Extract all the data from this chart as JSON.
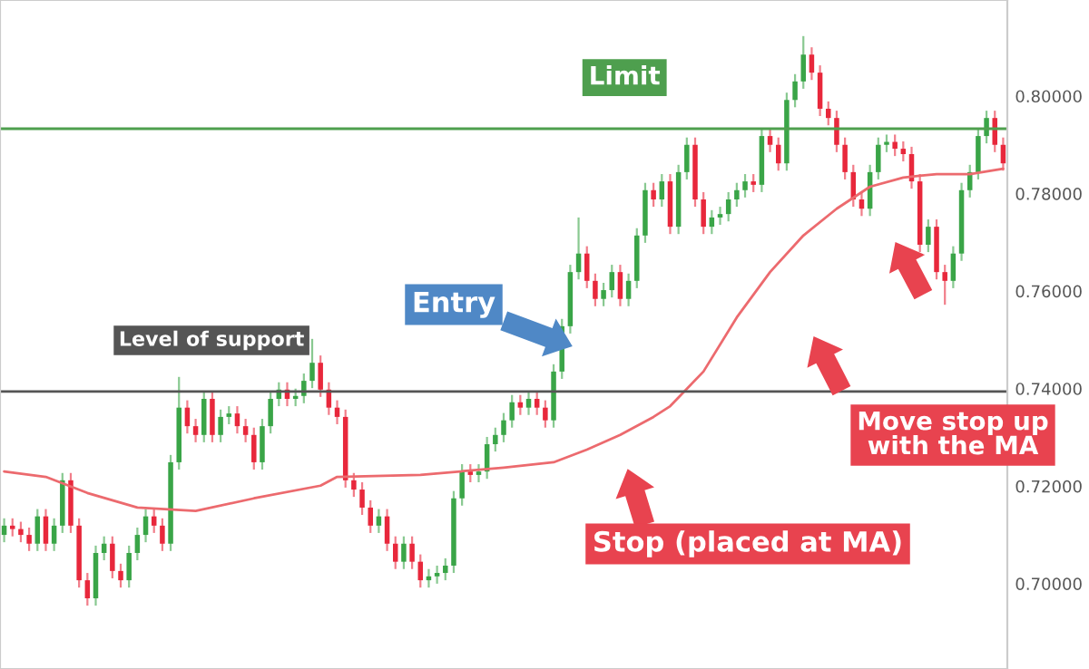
{
  "chart_data": {
    "type": "candlestick",
    "categories": [
      null,
      null,
      null,
      null,
      null,
      null,
      null,
      null,
      null,
      null,
      null,
      null,
      null,
      null,
      null,
      null,
      null,
      null,
      null,
      null,
      null,
      null,
      null,
      null,
      null,
      null,
      null,
      null,
      null,
      null,
      null,
      null,
      null,
      null,
      null,
      null,
      null,
      null,
      null,
      null,
      null,
      null,
      null,
      null,
      null,
      null,
      null,
      null,
      null,
      null,
      null,
      null,
      null,
      null,
      null,
      null,
      null,
      null,
      null,
      null,
      null,
      null,
      null,
      null,
      null,
      null,
      null,
      null,
      null,
      null,
      null,
      null,
      null,
      null,
      null,
      null,
      null,
      null,
      null,
      null,
      null,
      null,
      null,
      null,
      null,
      null,
      null,
      null,
      null,
      null,
      null,
      null,
      null,
      null,
      null,
      null,
      null,
      null,
      null,
      null,
      null,
      null,
      null,
      null,
      null,
      null,
      null,
      null,
      null,
      null,
      null,
      null,
      null,
      null,
      null,
      null,
      null,
      null,
      null,
      null,
      null
    ],
    "ohlc": [
      [
        0.71,
        0.7134,
        0.7085,
        0.7119
      ],
      [
        0.7119,
        0.7134,
        0.7097,
        0.7112
      ],
      [
        0.7112,
        0.7127,
        0.7085,
        0.71
      ],
      [
        0.71,
        0.7115,
        0.7067,
        0.7082
      ],
      [
        0.7082,
        0.7153,
        0.7067,
        0.7138
      ],
      [
        0.7138,
        0.7153,
        0.7067,
        0.7082
      ],
      [
        0.7082,
        0.7134,
        0.7067,
        0.7119
      ],
      [
        0.7119,
        0.7227,
        0.7104,
        0.7212
      ],
      [
        0.7212,
        0.7227,
        0.7104,
        0.7119
      ],
      [
        0.7119,
        0.7134,
        0.6992,
        0.7007
      ],
      [
        0.7007,
        0.7022,
        0.6955,
        0.697
      ],
      [
        0.697,
        0.7078,
        0.6955,
        0.7063
      ],
      [
        0.7063,
        0.7097,
        0.7048,
        0.7082
      ],
      [
        0.7082,
        0.7097,
        0.7011,
        0.7026
      ],
      [
        0.7026,
        0.7041,
        0.6992,
        0.7007
      ],
      [
        0.7007,
        0.7078,
        0.6992,
        0.7063
      ],
      [
        0.7063,
        0.7115,
        0.7048,
        0.71
      ],
      [
        0.71,
        0.7153,
        0.7085,
        0.7138
      ],
      [
        0.7138,
        0.7153,
        0.7104,
        0.7119
      ],
      [
        0.7119,
        0.7134,
        0.7067,
        0.7082
      ],
      [
        0.7082,
        0.7264,
        0.7067,
        0.7249
      ],
      [
        0.7249,
        0.7424,
        0.7234,
        0.7361
      ],
      [
        0.7361,
        0.7376,
        0.7308,
        0.7323
      ],
      [
        0.7323,
        0.7338,
        0.729,
        0.7305
      ],
      [
        0.7305,
        0.7394,
        0.729,
        0.7379
      ],
      [
        0.7379,
        0.7394,
        0.729,
        0.7305
      ],
      [
        0.7305,
        0.7357,
        0.729,
        0.7342
      ],
      [
        0.7342,
        0.7364,
        0.7327,
        0.7349
      ],
      [
        0.7349,
        0.7364,
        0.7308,
        0.7323
      ],
      [
        0.7323,
        0.7338,
        0.729,
        0.7305
      ],
      [
        0.7305,
        0.732,
        0.7234,
        0.7249
      ],
      [
        0.7249,
        0.7338,
        0.7234,
        0.7323
      ],
      [
        0.7323,
        0.7394,
        0.7308,
        0.7379
      ],
      [
        0.7379,
        0.7413,
        0.7364,
        0.7398
      ],
      [
        0.7398,
        0.7413,
        0.7364,
        0.7379
      ],
      [
        0.7379,
        0.74,
        0.7364,
        0.7385
      ],
      [
        0.7385,
        0.7431,
        0.737,
        0.7416
      ],
      [
        0.7416,
        0.7502,
        0.7401,
        0.7453
      ],
      [
        0.7453,
        0.7468,
        0.7383,
        0.7398
      ],
      [
        0.7398,
        0.7413,
        0.7346,
        0.7361
      ],
      [
        0.7361,
        0.7376,
        0.7327,
        0.7342
      ],
      [
        0.7342,
        0.7357,
        0.7197,
        0.7212
      ],
      [
        0.7212,
        0.7227,
        0.7178,
        0.7193
      ],
      [
        0.7193,
        0.7208,
        0.7141,
        0.7156
      ],
      [
        0.7156,
        0.7171,
        0.7104,
        0.7119
      ],
      [
        0.7119,
        0.7153,
        0.7104,
        0.7138
      ],
      [
        0.7138,
        0.7153,
        0.7067,
        0.7082
      ],
      [
        0.7082,
        0.7097,
        0.703,
        0.7045
      ],
      [
        0.7045,
        0.7097,
        0.703,
        0.7082
      ],
      [
        0.7082,
        0.7097,
        0.703,
        0.7045
      ],
      [
        0.7045,
        0.706,
        0.6992,
        0.7007
      ],
      [
        0.7007,
        0.703,
        0.6992,
        0.7015
      ],
      [
        0.7015,
        0.7037,
        0.7,
        0.7022
      ],
      [
        0.7022,
        0.7052,
        0.7007,
        0.7037
      ],
      [
        0.7037,
        0.719,
        0.7022,
        0.7175
      ],
      [
        0.7175,
        0.7245,
        0.716,
        0.723
      ],
      [
        0.723,
        0.7245,
        0.7208,
        0.7223
      ],
      [
        0.7223,
        0.7245,
        0.7208,
        0.723
      ],
      [
        0.723,
        0.7301,
        0.7215,
        0.7286
      ],
      [
        0.7286,
        0.732,
        0.7271,
        0.7305
      ],
      [
        0.7305,
        0.735,
        0.729,
        0.7335
      ],
      [
        0.7335,
        0.7387,
        0.732,
        0.7372
      ],
      [
        0.7372,
        0.7387,
        0.7346,
        0.7361
      ],
      [
        0.7361,
        0.7394,
        0.7346,
        0.7379
      ],
      [
        0.7379,
        0.7394,
        0.7346,
        0.7361
      ],
      [
        0.7361,
        0.7376,
        0.732,
        0.7335
      ],
      [
        0.7335,
        0.745,
        0.732,
        0.7435
      ],
      [
        0.7435,
        0.7543,
        0.742,
        0.7528
      ],
      [
        0.7528,
        0.7654,
        0.7513,
        0.7639
      ],
      [
        0.7639,
        0.7751,
        0.7624,
        0.7677
      ],
      [
        0.7677,
        0.7692,
        0.7606,
        0.7621
      ],
      [
        0.7621,
        0.7636,
        0.7569,
        0.7584
      ],
      [
        0.7584,
        0.7617,
        0.7569,
        0.7602
      ],
      [
        0.7602,
        0.7654,
        0.7587,
        0.7639
      ],
      [
        0.7639,
        0.7654,
        0.7569,
        0.7584
      ],
      [
        0.7584,
        0.7636,
        0.7569,
        0.7621
      ],
      [
        0.7621,
        0.7729,
        0.7606,
        0.7714
      ],
      [
        0.7714,
        0.7822,
        0.7699,
        0.7807
      ],
      [
        0.7807,
        0.7822,
        0.7773,
        0.7788
      ],
      [
        0.7788,
        0.784,
        0.7773,
        0.7825
      ],
      [
        0.7825,
        0.784,
        0.7717,
        0.7732
      ],
      [
        0.7732,
        0.7859,
        0.7717,
        0.7844
      ],
      [
        0.7844,
        0.7915,
        0.7829,
        0.79
      ],
      [
        0.79,
        0.7915,
        0.7773,
        0.7788
      ],
      [
        0.7788,
        0.7803,
        0.7717,
        0.7732
      ],
      [
        0.7732,
        0.7766,
        0.7717,
        0.7751
      ],
      [
        0.7751,
        0.7773,
        0.7736,
        0.7758
      ],
      [
        0.7758,
        0.7803,
        0.7743,
        0.7788
      ],
      [
        0.7788,
        0.7822,
        0.7773,
        0.7807
      ],
      [
        0.7807,
        0.784,
        0.7792,
        0.7825
      ],
      [
        0.7825,
        0.784,
        0.7803,
        0.7818
      ],
      [
        0.7818,
        0.7933,
        0.7803,
        0.7918
      ],
      [
        0.7918,
        0.7933,
        0.7885,
        0.79
      ],
      [
        0.79,
        0.7915,
        0.7847,
        0.7862
      ],
      [
        0.7862,
        0.8007,
        0.7847,
        0.7992
      ],
      [
        0.7992,
        0.8045,
        0.7977,
        0.803
      ],
      [
        0.803,
        0.8123,
        0.8015,
        0.8085
      ],
      [
        0.8085,
        0.81,
        0.8033,
        0.8048
      ],
      [
        0.8048,
        0.8063,
        0.7959,
        0.7974
      ],
      [
        0.7974,
        0.7989,
        0.794,
        0.7955
      ],
      [
        0.7955,
        0.797,
        0.7885,
        0.79
      ],
      [
        0.79,
        0.7915,
        0.7829,
        0.7844
      ],
      [
        0.7844,
        0.7859,
        0.7773,
        0.7788
      ],
      [
        0.7788,
        0.7803,
        0.7754,
        0.7769
      ],
      [
        0.7769,
        0.7859,
        0.7754,
        0.7844
      ],
      [
        0.7844,
        0.7915,
        0.7829,
        0.79
      ],
      [
        0.79,
        0.7921,
        0.7885,
        0.7906
      ],
      [
        0.7906,
        0.7921,
        0.7877,
        0.7892
      ],
      [
        0.7892,
        0.7907,
        0.7866,
        0.7881
      ],
      [
        0.7881,
        0.7896,
        0.781,
        0.7825
      ],
      [
        0.7825,
        0.784,
        0.768,
        0.7695
      ],
      [
        0.7695,
        0.7747,
        0.768,
        0.7732
      ],
      [
        0.7732,
        0.7747,
        0.7624,
        0.7639
      ],
      [
        0.7639,
        0.7654,
        0.7572,
        0.7621
      ],
      [
        0.7621,
        0.7692,
        0.7606,
        0.7677
      ],
      [
        0.7677,
        0.7822,
        0.7662,
        0.7807
      ],
      [
        0.7807,
        0.7859,
        0.7792,
        0.7844
      ],
      [
        0.7844,
        0.7933,
        0.7829,
        0.7918
      ],
      [
        0.7918,
        0.797,
        0.7903,
        0.7955
      ],
      [
        0.7955,
        0.797,
        0.7885,
        0.79
      ],
      [
        0.79,
        0.7915,
        0.7847,
        0.7862
      ]
    ],
    "colors": [
      "#3aa548",
      "#e8283c",
      "#e8283c",
      "#e8283c",
      "#3aa548",
      "#e8283c",
      "#3aa548",
      "#3aa548",
      "#e8283c",
      "#e8283c",
      "#e8283c",
      "#3aa548",
      "#3aa548",
      "#e8283c",
      "#e8283c",
      "#3aa548",
      "#3aa548",
      "#3aa548",
      "#e8283c",
      "#e8283c",
      "#3aa548",
      "#3aa548",
      "#e8283c",
      "#e8283c",
      "#3aa548",
      "#e8283c",
      "#3aa548",
      "#3aa548",
      "#e8283c",
      "#e8283c",
      "#e8283c",
      "#3aa548",
      "#3aa548",
      "#3aa548",
      "#e8283c",
      "#3aa548",
      "#3aa548",
      "#3aa548",
      "#e8283c",
      "#e8283c",
      "#e8283c",
      "#e8283c",
      "#e8283c",
      "#e8283c",
      "#e8283c",
      "#3aa548",
      "#e8283c",
      "#e8283c",
      "#3aa548",
      "#e8283c",
      "#e8283c",
      "#3aa548",
      "#3aa548",
      "#3aa548",
      "#3aa548",
      "#3aa548",
      "#e8283c",
      "#3aa548",
      "#3aa548",
      "#3aa548",
      "#3aa548",
      "#3aa548",
      "#e8283c",
      "#3aa548",
      "#e8283c",
      "#e8283c",
      "#3aa548",
      "#3aa548",
      "#3aa548",
      "#3aa548",
      "#e8283c",
      "#e8283c",
      "#3aa548",
      "#3aa548",
      "#e8283c",
      "#3aa548",
      "#3aa548",
      "#3aa548",
      "#e8283c",
      "#3aa548",
      "#e8283c",
      "#3aa548",
      "#3aa548",
      "#e8283c",
      "#e8283c",
      "#3aa548",
      "#3aa548",
      "#3aa548",
      "#3aa548",
      "#3aa548",
      "#e8283c",
      "#3aa548",
      "#e8283c",
      "#e8283c",
      "#3aa548",
      "#3aa548",
      "#3aa548",
      "#e8283c",
      "#e8283c",
      "#e8283c",
      "#e8283c",
      "#e8283c",
      "#e8283c",
      "#e8283c",
      "#3aa548",
      "#3aa548",
      "#3aa548",
      "#e8283c",
      "#e8283c",
      "#e8283c",
      "#e8283c",
      "#3aa548",
      "#e8283c",
      "#e8283c",
      "#3aa548",
      "#3aa548",
      "#3aa548",
      "#3aa548",
      "#3aa548",
      "#e8283c",
      "#e8283c"
    ],
    "series": [
      {
        "type": "line",
        "color": "#ec6a6e",
        "values": [
          0.723,
          null,
          null,
          null,
          null,
          0.7219,
          null,
          null,
          null,
          null,
          0.7186,
          null,
          null,
          null,
          null,
          null,
          0.7156,
          null,
          null,
          null,
          null,
          null,
          null,
          0.7149,
          null,
          null,
          null,
          null,
          null,
          null,
          0.7175,
          null,
          null,
          null,
          null,
          null,
          null,
          null,
          0.7201,
          null,
          0.7219,
          null,
          null,
          null,
          null,
          null,
          null,
          null,
          null,
          null,
          0.7223,
          null,
          null,
          null,
          null,
          null,
          null,
          null,
          null,
          null,
          0.7238,
          null,
          null,
          null,
          null,
          null,
          0.7249,
          null,
          null,
          null,
          0.7275,
          null,
          null,
          null,
          0.7305,
          null,
          null,
          null,
          0.7342,
          null,
          0.7364,
          null,
          null,
          null,
          0.7435,
          null,
          null,
          null,
          0.7546,
          null,
          null,
          null,
          0.7639,
          null,
          null,
          null,
          0.7714,
          null,
          null,
          null,
          0.7769,
          null,
          null,
          null,
          0.7814,
          null,
          null,
          null,
          0.7833,
          null,
          null,
          null,
          0.784,
          null,
          null,
          null,
          0.784,
          null,
          null,
          null,
          0.7851
        ]
      }
    ],
    "ylim": [
      0.6825,
      0.8197
    ],
    "yticks": [
      {
        "value": 0.7,
        "label": "0.70000"
      },
      {
        "value": 0.72,
        "label": "0.72000"
      },
      {
        "value": 0.74,
        "label": "0.74000"
      },
      {
        "value": 0.76,
        "label": "0.76000"
      },
      {
        "value": 0.78,
        "label": "0.78000"
      },
      {
        "value": 0.8,
        "label": "0.80000"
      }
    ],
    "tick_labels": "y",
    "ref_lines": [
      {
        "axis": "y",
        "value": 0.7394,
        "label": "Level of support",
        "color": "#555555"
      },
      {
        "axis": "y",
        "value": 0.7933,
        "label": "Limit",
        "color": "#4e9f4e"
      }
    ],
    "annotations": [
      "Entry",
      "Stop (placed at MA)",
      "Move stop up\nwith the MA"
    ],
    "grid": false,
    "legend": false
  }
}
